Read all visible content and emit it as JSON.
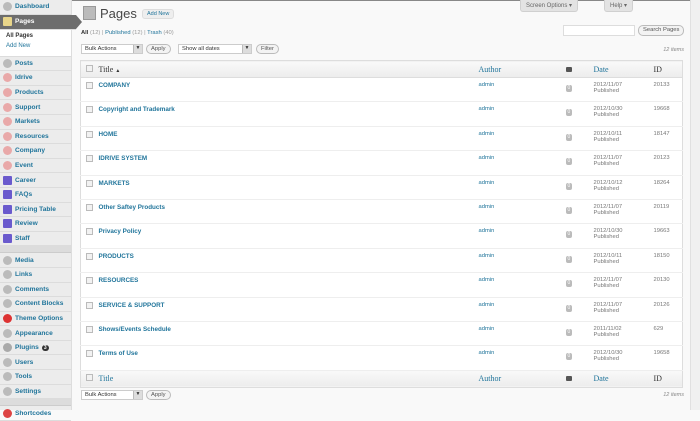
{
  "sidebar": {
    "items": [
      {
        "label": "Dashboard",
        "icon": "dashboard-icon"
      },
      {
        "label": "Pages",
        "icon": "pages-icon",
        "active": true,
        "sub": [
          "All Pages",
          "Add New"
        ]
      },
      {
        "label": "Posts",
        "icon": "pin-icon"
      },
      {
        "label": "Idrive",
        "icon": "lifebuoy-icon"
      },
      {
        "label": "Products",
        "icon": "lifebuoy-icon"
      },
      {
        "label": "Support",
        "icon": "lifebuoy-icon"
      },
      {
        "label": "Markets",
        "icon": "lifebuoy-icon"
      },
      {
        "label": "Resources",
        "icon": "lifebuoy-icon"
      },
      {
        "label": "Company",
        "icon": "lifebuoy-icon"
      },
      {
        "label": "Event",
        "icon": "lifebuoy-icon"
      },
      {
        "label": "Career",
        "icon": "shapes-icon"
      },
      {
        "label": "FAQs",
        "icon": "shapes-icon"
      },
      {
        "label": "Pricing Table",
        "icon": "shapes-icon"
      },
      {
        "label": "Review",
        "icon": "shapes-icon"
      },
      {
        "label": "Staff",
        "icon": "shapes-icon"
      },
      {
        "label": "Media",
        "icon": "media-icon"
      },
      {
        "label": "Links",
        "icon": "link-icon"
      },
      {
        "label": "Comments",
        "icon": "comment-icon"
      },
      {
        "label": "Content Blocks",
        "icon": "blocks-icon"
      },
      {
        "label": "Theme Options",
        "icon": "theme-options-icon"
      },
      {
        "label": "Appearance",
        "icon": "appearance-icon"
      },
      {
        "label": "Plugins",
        "icon": "plugin-icon",
        "badge": "3"
      },
      {
        "label": "Users",
        "icon": "users-icon"
      },
      {
        "label": "Tools",
        "icon": "tools-icon"
      },
      {
        "label": "Settings",
        "icon": "settings-icon"
      },
      {
        "label": "Shortcodes",
        "icon": "shortcodes-icon"
      }
    ]
  },
  "header": {
    "title": "Pages",
    "add_new": "Add New",
    "screen_options": "Screen Options ▾",
    "help": "Help ▾"
  },
  "filters": {
    "all": "All",
    "all_count": "(12)",
    "published": "Published",
    "published_count": "(12)",
    "trash": "Trash",
    "trash_count": "(40)",
    "bulk_actions": "Bulk Actions",
    "apply": "Apply",
    "dates": "Show all dates",
    "filter": "Filter",
    "search_button": "Search Pages",
    "search_value": "",
    "items_count": "12 items"
  },
  "table": {
    "columns": {
      "title": "Title",
      "title_sort": "▲",
      "author": "Author",
      "date": "Date",
      "id": "ID"
    },
    "rows": [
      {
        "title": "COMPANY",
        "author": "admin",
        "comments": "0",
        "date": "2012/11/07",
        "status": "Published",
        "id": "20133"
      },
      {
        "title": "Copyright and Trademark",
        "author": "admin",
        "comments": "0",
        "date": "2012/10/30",
        "status": "Published",
        "id": "19668"
      },
      {
        "title": "HOME",
        "author": "admin",
        "comments": "0",
        "date": "2012/10/11",
        "status": "Published",
        "id": "18147"
      },
      {
        "title": "IDRIVE SYSTEM",
        "author": "admin",
        "comments": "0",
        "date": "2012/11/07",
        "status": "Published",
        "id": "20123"
      },
      {
        "title": "MARKETS",
        "author": "admin",
        "comments": "0",
        "date": "2012/10/12",
        "status": "Published",
        "id": "18264"
      },
      {
        "title": "Other Saftey Products",
        "author": "admin",
        "comments": "0",
        "date": "2012/11/07",
        "status": "Published",
        "id": "20119"
      },
      {
        "title": "Privacy Policy",
        "author": "admin",
        "comments": "0",
        "date": "2012/10/30",
        "status": "Published",
        "id": "19663"
      },
      {
        "title": "PRODUCTS",
        "author": "admin",
        "comments": "0",
        "date": "2012/10/11",
        "status": "Published",
        "id": "18150"
      },
      {
        "title": "RESOURCES",
        "author": "admin",
        "comments": "0",
        "date": "2012/11/07",
        "status": "Published",
        "id": "20130"
      },
      {
        "title": "SERVICE & SUPPORT",
        "author": "admin",
        "comments": "0",
        "date": "2012/11/07",
        "status": "Published",
        "id": "20126"
      },
      {
        "title": "Shows/Events Schedule",
        "author": "admin",
        "comments": "0",
        "date": "2011/11/02",
        "status": "Published",
        "id": "629"
      },
      {
        "title": "Terms of Use",
        "author": "admin",
        "comments": "0",
        "date": "2012/10/30",
        "status": "Published",
        "id": "19658"
      }
    ]
  }
}
